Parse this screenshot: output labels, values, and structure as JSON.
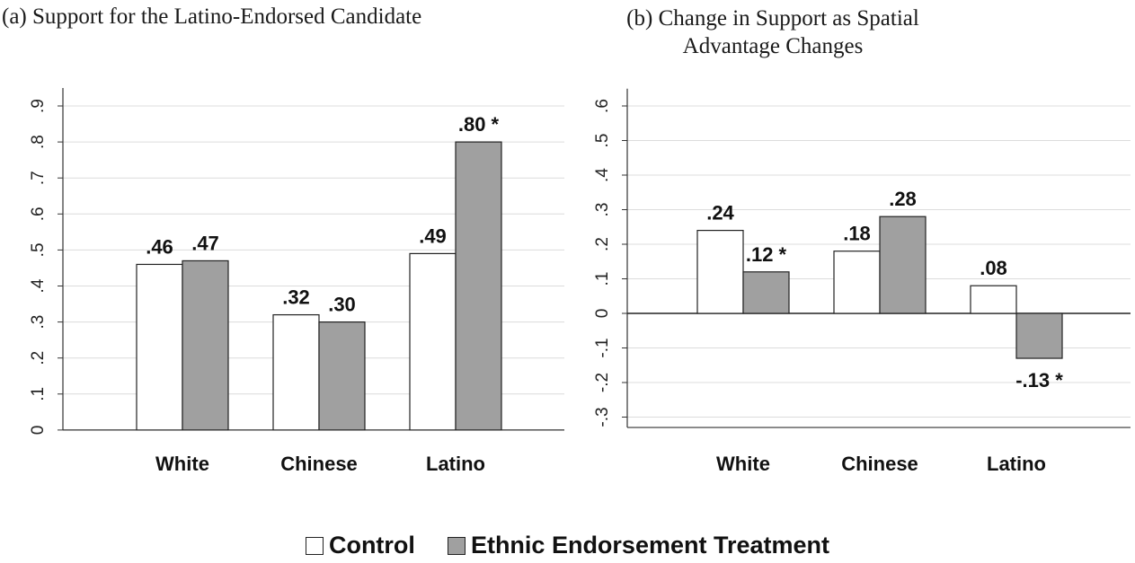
{
  "chart_data": [
    {
      "type": "bar",
      "title": "(a) Support for the Latino-Endorsed Candidate",
      "categories": [
        "White",
        "Chinese",
        "Latino"
      ],
      "series": [
        {
          "name": "Control",
          "values": [
            0.46,
            0.32,
            0.49
          ],
          "labels": [
            ".46",
            ".32",
            ".49"
          ],
          "color": "#ffffff"
        },
        {
          "name": "Ethnic Endorsement Treatment",
          "values": [
            0.47,
            0.3,
            0.8
          ],
          "labels": [
            ".47",
            ".30",
            ".80 *"
          ],
          "color": "#a0a0a0"
        }
      ],
      "ylim": [
        0,
        0.95
      ],
      "yticks": [
        0,
        0.1,
        0.2,
        0.3,
        0.4,
        0.5,
        0.6,
        0.7,
        0.8,
        0.9
      ],
      "ytick_labels": [
        "0",
        ".1",
        ".2",
        ".3",
        ".4",
        ".5",
        ".6",
        ".7",
        ".8",
        ".9"
      ],
      "xlabel": "",
      "ylabel": "",
      "grid": true
    },
    {
      "type": "bar",
      "title": "(b) Change in Support as Spatial Advantage Changes",
      "categories": [
        "White",
        "Chinese",
        "Latino"
      ],
      "series": [
        {
          "name": "Control",
          "values": [
            0.24,
            0.18,
            0.08
          ],
          "labels": [
            ".24",
            ".18",
            ".08"
          ],
          "color": "#ffffff"
        },
        {
          "name": "Ethnic Endorsement Treatment",
          "values": [
            0.12,
            0.28,
            -0.13
          ],
          "labels": [
            ".12 *",
            ".28",
            "-.13 *"
          ],
          "color": "#a0a0a0"
        }
      ],
      "ylim": [
        -0.33,
        0.65
      ],
      "yticks": [
        -0.3,
        -0.2,
        -0.1,
        0,
        0.1,
        0.2,
        0.3,
        0.4,
        0.5,
        0.6
      ],
      "ytick_labels": [
        "-.3",
        "-.2",
        "-.1",
        "0",
        ".1",
        ".2",
        ".3",
        ".4",
        ".5",
        ".6"
      ],
      "xlabel": "",
      "ylabel": "",
      "grid": true,
      "zero_line": true
    }
  ],
  "legend": [
    {
      "label": "Control",
      "color": "#ffffff"
    },
    {
      "label": "Ethnic Endorsement Treatment",
      "color": "#a0a0a0"
    }
  ]
}
